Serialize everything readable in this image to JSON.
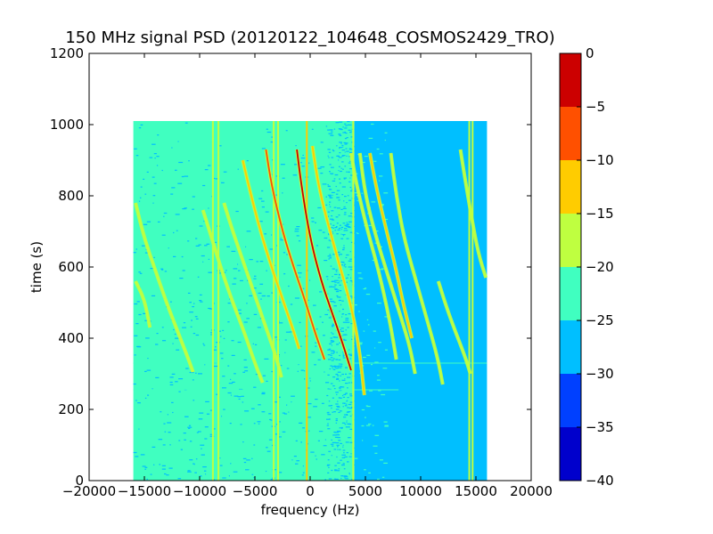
{
  "chart_data": {
    "type": "heatmap",
    "title": "150 MHz signal PSD (20120122_104648_COSMOS2429_TRO)",
    "xlabel": "frequency (Hz)",
    "ylabel": "time (s)",
    "xlim": [
      -20000,
      20000
    ],
    "ylim": [
      0,
      1200
    ],
    "xticks": [
      -20000,
      -15000,
      -10000,
      -5000,
      0,
      5000,
      10000,
      15000,
      20000
    ],
    "xtick_labels": [
      "−20000",
      "−15000",
      "−10000",
      "−5000",
      "0",
      "5000",
      "10000",
      "15000",
      "20000"
    ],
    "yticks": [
      0,
      200,
      400,
      600,
      800,
      1000,
      1200
    ],
    "ytick_labels": [
      "0",
      "200",
      "400",
      "600",
      "800",
      "1000",
      "1200"
    ],
    "data_extent": {
      "freq": [
        -16000,
        16000
      ],
      "time": [
        0,
        1010
      ]
    },
    "background_level": {
      "below_4000Hz": -22.5,
      "above_4000Hz": -27.5
    },
    "colorbar": {
      "levels": [
        -40,
        -35,
        -30,
        -25,
        -20,
        -15,
        -10,
        -5,
        0
      ],
      "tick_labels": [
        "−40",
        "−35",
        "−30",
        "−25",
        "−20",
        "−15",
        "−10",
        "−5",
        "0"
      ],
      "colors": [
        "#0000cc",
        "#0040ff",
        "#00bfff",
        "#40ffc0",
        "#bfff40",
        "#ffcc00",
        "#ff5000",
        "#cc0000"
      ]
    },
    "vertical_lines": [
      {
        "freq": -8800,
        "level": -17
      },
      {
        "freq": -8300,
        "level": -17
      },
      {
        "freq": -3300,
        "level": -15
      },
      {
        "freq": -2900,
        "level": -17
      },
      {
        "freq": -300,
        "level": -12
      },
      {
        "freq": 3900,
        "level": -18
      },
      {
        "freq": 14400,
        "level": -18
      },
      {
        "freq": 14700,
        "level": -18
      }
    ],
    "doppler_traces": [
      {
        "freq": [
          -15800,
          -15000,
          -14000,
          -13000,
          -12000,
          -11000,
          -10600
        ],
        "time": [
          780,
          680,
          590,
          500,
          420,
          340,
          305
        ],
        "level": -15
      },
      {
        "freq": [
          -15800,
          -15000,
          -14500
        ],
        "time": [
          560,
          510,
          430
        ],
        "level": -15
      },
      {
        "freq": [
          -9700,
          -9000,
          -8000,
          -7000,
          -6000,
          -5000,
          -4300
        ],
        "time": [
          760,
          690,
          590,
          500,
          420,
          330,
          275
        ],
        "level": -15
      },
      {
        "freq": [
          -7800,
          -7000,
          -6000,
          -5000,
          -4000,
          -3000,
          -2600
        ],
        "time": [
          780,
          700,
          610,
          520,
          430,
          340,
          290
        ],
        "level": -15
      },
      {
        "freq": [
          -6100,
          -5500,
          -4500,
          -3500,
          -2500,
          -1500,
          -1000
        ],
        "time": [
          900,
          820,
          700,
          600,
          510,
          420,
          370
        ],
        "level": -10
      },
      {
        "freq": [
          -4000,
          -3500,
          -2500,
          -1500,
          -500,
          500,
          1300
        ],
        "time": [
          930,
          830,
          700,
          600,
          510,
          410,
          340
        ],
        "level": -5
      },
      {
        "freq": [
          -1200,
          -800,
          0,
          1000,
          2000,
          3000,
          3700
        ],
        "time": [
          930,
          830,
          680,
          560,
          470,
          380,
          310
        ],
        "level": 0
      },
      {
        "freq": [
          200,
          800,
          1800,
          2800,
          3800,
          4500,
          4900
        ],
        "time": [
          940,
          820,
          700,
          590,
          480,
          360,
          240
        ],
        "level": -10
      },
      {
        "freq": [
          3700,
          4200,
          5200,
          6200,
          7200,
          7800
        ],
        "time": [
          920,
          830,
          700,
          590,
          450,
          340
        ],
        "level": -15
      },
      {
        "freq": [
          4500,
          5000,
          6000,
          7000,
          8000,
          9000,
          9500
        ],
        "time": [
          920,
          800,
          680,
          580,
          480,
          380,
          300
        ],
        "level": -15
      },
      {
        "freq": [
          5400,
          6000,
          7000,
          7800,
          8400,
          9200
        ],
        "time": [
          920,
          820,
          690,
          590,
          500,
          400
        ],
        "level": -10
      },
      {
        "freq": [
          7300,
          7800,
          8500,
          9500,
          10500,
          11500,
          12000
        ],
        "time": [
          920,
          800,
          680,
          570,
          460,
          350,
          270
        ],
        "level": -15
      },
      {
        "freq": [
          11600,
          12200,
          13000,
          14000,
          14500
        ],
        "time": [
          560,
          500,
          430,
          350,
          300
        ],
        "level": -17
      },
      {
        "freq": [
          13600,
          14000,
          14600,
          15200,
          15900
        ],
        "time": [
          930,
          850,
          740,
          640,
          570
        ],
        "level": -15
      }
    ],
    "horizontal_glitches": [
      {
        "time": 330,
        "freq": [
          -16000,
          16000
        ],
        "level": -20
      },
      {
        "time": 255,
        "freq": [
          -16000,
          8000
        ],
        "level": -20
      }
    ]
  }
}
